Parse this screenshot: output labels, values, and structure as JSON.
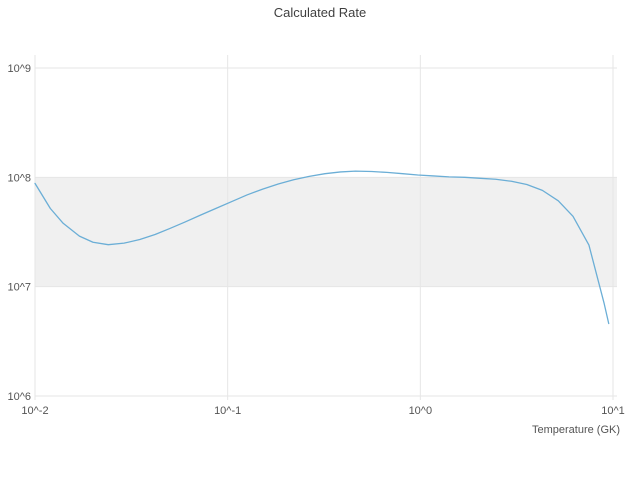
{
  "chart_data": {
    "type": "line",
    "title": "Calculated Rate",
    "xlabel": "Temperature (GK)",
    "ylabel": "",
    "x_scale": "log",
    "y_scale": "log",
    "xlim": [
      0.01,
      10
    ],
    "ylim": [
      1000000.0,
      1000000000.0
    ],
    "grid": true,
    "legend": "none",
    "x_ticks": [
      {
        "value": 0.01,
        "label": "10^-2"
      },
      {
        "value": 0.1,
        "label": "10^-1"
      },
      {
        "value": 1,
        "label": "10^0"
      },
      {
        "value": 10,
        "label": "10^1"
      }
    ],
    "y_ticks": [
      {
        "value": 1000000.0,
        "label": "10^6"
      },
      {
        "value": 10000000.0,
        "label": "10^7"
      },
      {
        "value": 100000000.0,
        "label": "10^8"
      },
      {
        "value": 1000000000.0,
        "label": "10^9"
      }
    ],
    "shaded_band": {
      "y_min": 10000000.0,
      "y_max": 100000000.0,
      "color": "#f0f0f0"
    },
    "colors": {
      "line": "#6baed6",
      "grid": "#e6e6e6",
      "background": "#ffffff"
    },
    "series": [
      {
        "name": "Calculated Rate",
        "x": [
          0.01,
          0.012,
          0.014,
          0.017,
          0.02,
          0.024,
          0.029,
          0.035,
          0.042,
          0.05,
          0.06,
          0.072,
          0.087,
          0.105,
          0.126,
          0.152,
          0.183,
          0.22,
          0.265,
          0.32,
          0.385,
          0.46,
          0.56,
          0.67,
          0.81,
          0.97,
          1.17,
          1.41,
          1.7,
          2.05,
          2.46,
          2.97,
          3.57,
          4.3,
          5.2,
          6.2,
          7.5,
          9.0,
          9.5
        ],
        "y": [
          88000000.0,
          52000000.0,
          38000000.0,
          29000000.0,
          25500000.0,
          24200000.0,
          25000000.0,
          27000000.0,
          30000000.0,
          34000000.0,
          39000000.0,
          45000000.0,
          52000000.0,
          60000000.0,
          69000000.0,
          78000000.0,
          87000000.0,
          95000000.0,
          102000000.0,
          108000000.0,
          112000000.0,
          114000000.0,
          113000000.0,
          111000000.0,
          108000000.0,
          105000000.0,
          103000000.0,
          101000000.0,
          100000000.0,
          98000000.0,
          96000000.0,
          92000000.0,
          86000000.0,
          76000000.0,
          61000000.0,
          44000000.0,
          24000000.0,
          7000000.0,
          4600000.0
        ]
      }
    ]
  }
}
